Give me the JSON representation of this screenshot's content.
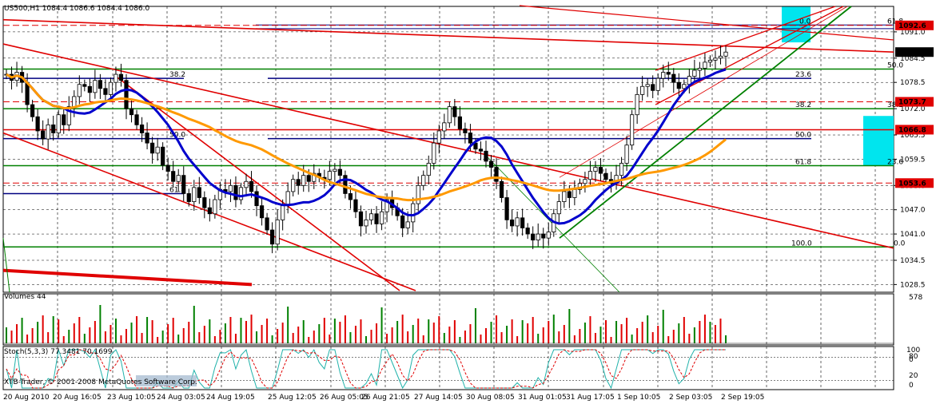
{
  "chart_data": {
    "type": "candlestick",
    "header": "US500,H1  1084.4 1086.6 1084.4 1086.0",
    "price_axis": {
      "ticks": [
        1091.0,
        1084.5,
        1078.5,
        1072.0,
        1065.5,
        1059.5,
        1053.0,
        1047.0,
        1041.0,
        1034.5,
        1028.5
      ],
      "ylim": [
        1026.6,
        1097.3
      ],
      "tags": [
        {
          "label": "1092.6",
          "value": 1092.6,
          "color": "#e00000",
          "style": "dash"
        },
        {
          "label": "1086.0",
          "value": 1086.0,
          "color": "#000000",
          "style": "current"
        },
        {
          "label": "1073.7",
          "value": 1073.7,
          "color": "#e00000",
          "style": "dash"
        },
        {
          "label": "1066.8",
          "value": 1066.8,
          "color": "#e00000",
          "style": "solid"
        },
        {
          "label": "1053.6",
          "value": 1053.6,
          "color": "#e00000",
          "style": "dash"
        }
      ]
    },
    "time_axis": {
      "labels": [
        "20 Aug 2010",
        "20 Aug 16:05",
        "23 Aug 10:05",
        "24 Aug 03:05",
        "24 Aug 19:05",
        "25 Aug 12:05",
        "26 Aug 05:05",
        "26 Aug 21:05",
        "27 Aug 14:05",
        "30 Aug 08:05",
        "31 Aug 01:05",
        "31 Aug 17:05",
        "1 Sep 10:05",
        "2 Sep 03:05",
        "2 Sep 19:05"
      ]
    },
    "fib_labels": [
      {
        "text": "38.2",
        "price": 1079.5,
        "color": "#000080"
      },
      {
        "text": "50.0",
        "price": 1064.6,
        "color": "#000080"
      },
      {
        "text": "61.8",
        "price": 1051.0,
        "color": "#000080"
      },
      {
        "text": "100.0",
        "price": 1037.8,
        "color": "#000080"
      },
      {
        "text": "23.6",
        "price": 1079.5,
        "color": "#000080"
      },
      {
        "text": "38.2",
        "price": 1072.0,
        "color": "#000080"
      },
      {
        "text": "50.0",
        "price": 1064.6,
        "color": "#000080"
      },
      {
        "text": "61.8",
        "price": 1057.9,
        "color": "#000080"
      },
      {
        "text": "0.0",
        "price": 1092.7,
        "color": "#000080"
      },
      {
        "text": "61.8",
        "price": 1092.7,
        "color": "#006600"
      },
      {
        "text": "50.0",
        "price": 1081.8,
        "color": "#006600"
      },
      {
        "text": "38.2",
        "price": 1072.0,
        "color": "#006600"
      },
      {
        "text": "23.6",
        "price": 1057.9,
        "color": "#006600"
      },
      {
        "text": "0.0",
        "price": 1037.8,
        "color": "#006600"
      }
    ],
    "volumes": {
      "title": "Volumes 44",
      "ticks": [
        "578",
        "0"
      ]
    },
    "stochastic": {
      "title": "Stoch(5,3,3) 77.3481 70.1699",
      "ticks": [
        "100",
        "80",
        "20",
        "0"
      ]
    },
    "watermark": "XTB-Trader, © 2001-2008 MetaQuotes Software Corp.",
    "colors": {
      "up_candle": "#000000",
      "down_candle": "#000000",
      "ma_fast": "#0000cc",
      "ma_slow": "#ff9900",
      "trend_red": "#e00000",
      "trend_green": "#008000",
      "fib": "#000080",
      "highlight": "#00e5ee"
    },
    "series_close": [
      1080.5,
      1079.0,
      1081.0,
      1078.5,
      1073.0,
      1070.0,
      1066.5,
      1064.5,
      1068.0,
      1066.0,
      1070.5,
      1068.0,
      1072.5,
      1075.0,
      1078.0,
      1077.5,
      1076.0,
      1079.0,
      1077.0,
      1075.5,
      1078.5,
      1080.5,
      1079.0,
      1072.0,
      1070.5,
      1068.0,
      1066.0,
      1063.5,
      1061.0,
      1062.5,
      1058.0,
      1056.5,
      1054.0,
      1055.5,
      1051.0,
      1049.0,
      1052.5,
      1050.0,
      1047.5,
      1046.0,
      1049.5,
      1052.0,
      1051.5,
      1053.0,
      1049.5,
      1052.5,
      1054.0,
      1051.5,
      1048.0,
      1045.0,
      1042.0,
      1038.5,
      1044.5,
      1048.0,
      1051.5,
      1054.5,
      1053.0,
      1055.5,
      1054.0,
      1056.0,
      1055.0,
      1054.5,
      1056.5,
      1057.0,
      1055.5,
      1051.0,
      1049.5,
      1046.5,
      1043.0,
      1044.5,
      1046.0,
      1043.5,
      1046.5,
      1049.5,
      1047.5,
      1045.5,
      1042.5,
      1044.0,
      1048.5,
      1053.0,
      1055.5,
      1058.5,
      1063.5,
      1066.5,
      1068.5,
      1072.5,
      1070.0,
      1067.0,
      1066.0,
      1063.5,
      1062.0,
      1061.5,
      1059.0,
      1057.5,
      1054.0,
      1050.0,
      1044.5,
      1043.0,
      1045.0,
      1042.5,
      1041.0,
      1039.5,
      1041.0,
      1040.0,
      1041.5,
      1046.0,
      1049.0,
      1051.5,
      1050.0,
      1052.0,
      1053.5,
      1054.5,
      1056.5,
      1057.5,
      1056.0,
      1054.5,
      1053.5,
      1055.5,
      1058.5,
      1063.0,
      1070.5,
      1075.5,
      1077.5,
      1078.0,
      1076.5,
      1079.5,
      1081.0,
      1080.5,
      1078.5,
      1077.0,
      1078.0,
      1080.0,
      1081.5,
      1082.0,
      1083.5,
      1084.0,
      1084.5,
      1085.0,
      1086.0
    ]
  }
}
